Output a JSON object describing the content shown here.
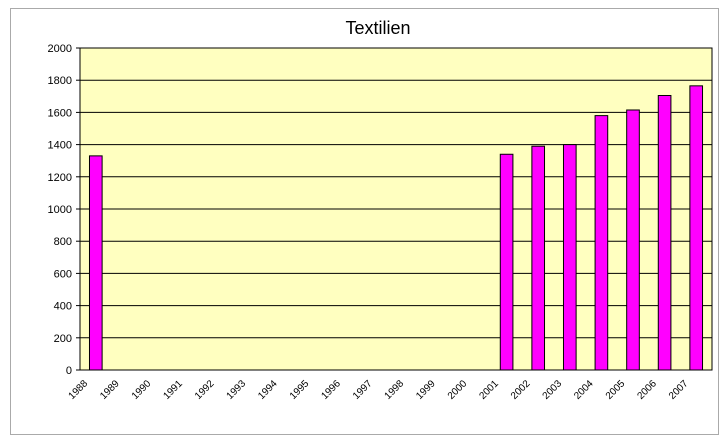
{
  "chart_data": {
    "type": "bar",
    "title": "Textilien",
    "categories": [
      "1988",
      "1989",
      "1990",
      "1991",
      "1992",
      "1993",
      "1994",
      "1995",
      "1996",
      "1997",
      "1998",
      "1999",
      "2000",
      "2001",
      "2002",
      "2003",
      "2004",
      "2005",
      "2006",
      "2007"
    ],
    "values": [
      1330,
      null,
      null,
      null,
      null,
      null,
      null,
      null,
      null,
      null,
      null,
      null,
      null,
      1340,
      1390,
      1400,
      1580,
      1615,
      1705,
      1765
    ],
    "color": "#ff00ff",
    "ylim": [
      0,
      2000
    ],
    "yticks": [
      0,
      200,
      400,
      600,
      800,
      1000,
      1200,
      1400,
      1600,
      1800,
      2000
    ],
    "grid": true
  }
}
